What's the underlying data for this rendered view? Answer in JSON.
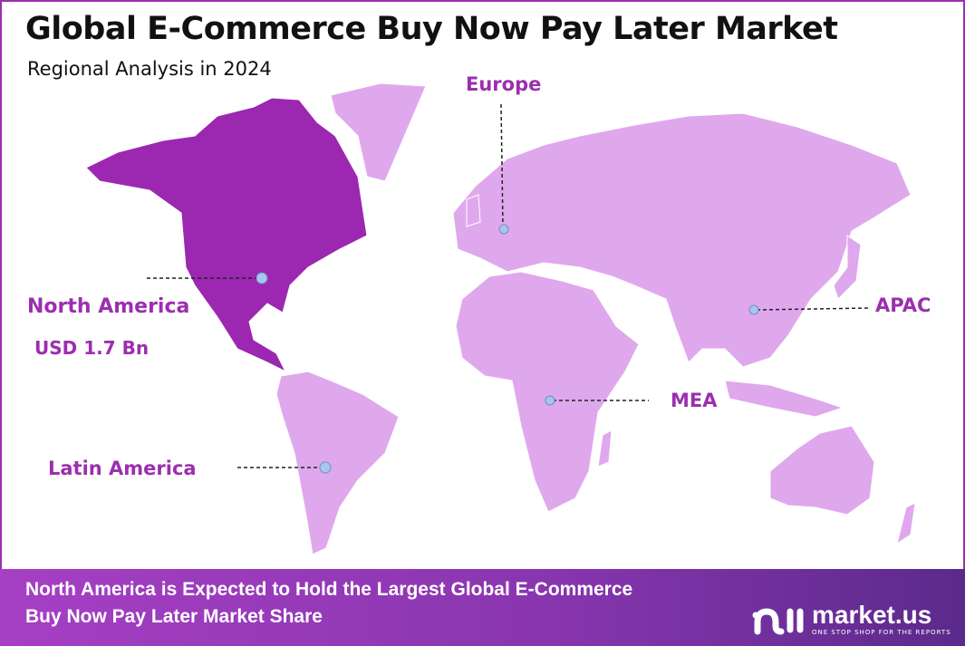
{
  "title": "Global E-Commerce Buy Now Pay Later Market",
  "subtitle": "Regional Analysis in 2024",
  "colors": {
    "highlight_region": "#9c27b0",
    "other_regions": "#e0a8ec",
    "label": "#9b2fae",
    "marker": "#a9c4ee",
    "border": "#9b2fae"
  },
  "regions": [
    {
      "name": "North America",
      "value": "USD 1.7 Bn",
      "highlighted": true
    },
    {
      "name": "Europe",
      "highlighted": false
    },
    {
      "name": "APAC",
      "highlighted": false
    },
    {
      "name": "MEA",
      "highlighted": false
    },
    {
      "name": "Latin America",
      "highlighted": false
    }
  ],
  "footer": {
    "line1": "North America is Expected to Hold the Largest Global E-Commerce",
    "line2": "Buy Now Pay Later Market Share"
  },
  "logo": {
    "name": "market.us",
    "tagline": "ONE STOP SHOP FOR THE REPORTS"
  }
}
